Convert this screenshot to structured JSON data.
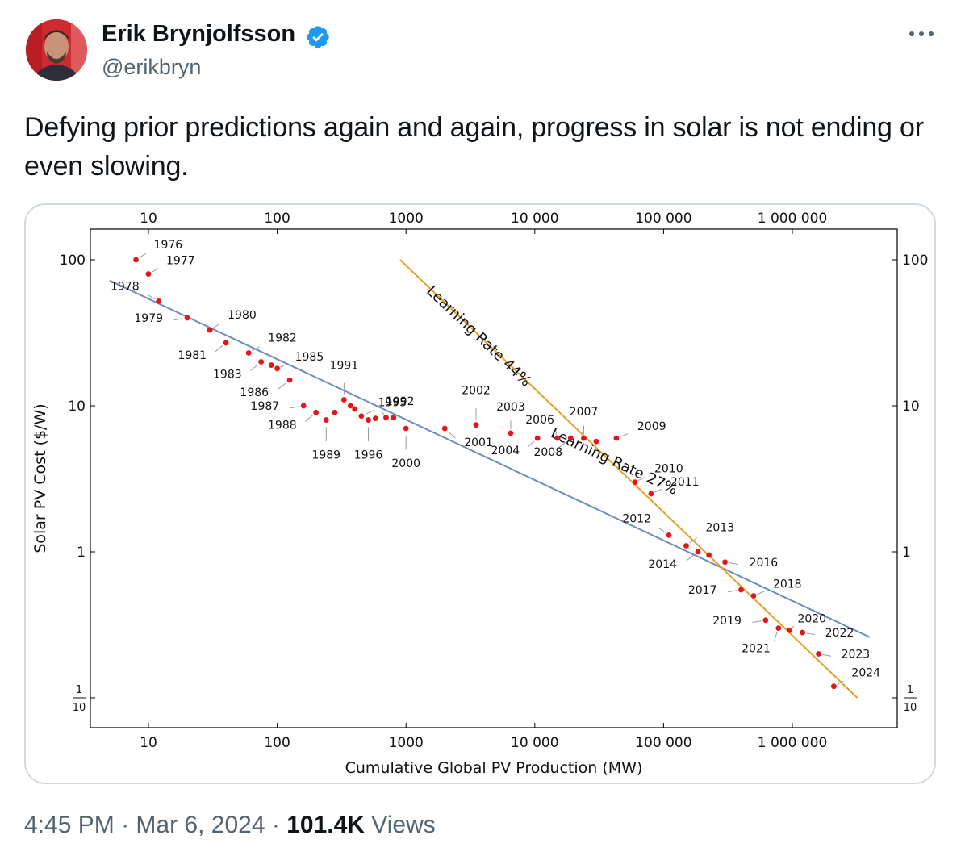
{
  "author": {
    "name": "Erik Brynjolfsson",
    "handle": "@erikbryn",
    "verified": true
  },
  "tweet": {
    "text": "Defying prior predictions again and again, progress in solar is not ending or even slowing."
  },
  "footer": {
    "time": "4:45 PM",
    "sep1": "·",
    "date": "Mar 6, 2024",
    "sep2": "·",
    "views_count": "101.4K",
    "views_label": "Views"
  },
  "icons": {
    "verified": "verified-badge-icon",
    "more": "more-dots-icon"
  },
  "colors": {
    "verified_blue": "#1d9bf0",
    "point": "#e8141b",
    "line27": "#6f8bbf",
    "line44": "#e0a12c"
  },
  "chart_data": {
    "type": "scatter",
    "x_scale": "log",
    "y_scale": "log",
    "xlabel": "Cumulative Global PV Production (MW)",
    "ylabel": "Solar PV Cost ($/W)",
    "x_ticks": [
      {
        "v": 10,
        "label": "10"
      },
      {
        "v": 100,
        "label": "100"
      },
      {
        "v": 1000,
        "label": "1000"
      },
      {
        "v": 10000,
        "label": "10 000"
      },
      {
        "v": 100000,
        "label": "100 000"
      },
      {
        "v": 1000000,
        "label": "1 000 000"
      }
    ],
    "y_ticks": [
      {
        "v": 100,
        "label": "100"
      },
      {
        "v": 10,
        "label": "10"
      },
      {
        "v": 1,
        "label": "1"
      }
    ],
    "y_tick_fraction": {
      "v": 0.1,
      "num": "1",
      "den": "10"
    },
    "xlim": [
      3,
      40000000
    ],
    "ylim": [
      0.07,
      160
    ],
    "points": [
      {
        "year": "1976",
        "x": 8,
        "y": 100
      },
      {
        "year": "1977",
        "x": 10,
        "y": 80
      },
      {
        "year": "1978",
        "x": 12,
        "y": 52
      },
      {
        "year": "1979",
        "x": 20,
        "y": 40
      },
      {
        "year": "1980",
        "x": 30,
        "y": 33
      },
      {
        "year": "1981",
        "x": 40,
        "y": 27
      },
      {
        "year": "1982",
        "x": 60,
        "y": 23
      },
      {
        "year": "1983",
        "x": 75,
        "y": 20
      },
      {
        "year": "",
        "x": 90,
        "y": 19
      },
      {
        "year": "1985",
        "x": 100,
        "y": 18
      },
      {
        "year": "1986",
        "x": 125,
        "y": 15
      },
      {
        "year": "1987",
        "x": 160,
        "y": 10
      },
      {
        "year": "1988",
        "x": 200,
        "y": 9
      },
      {
        "year": "1989",
        "x": 240,
        "y": 8
      },
      {
        "year": "",
        "x": 280,
        "y": 9
      },
      {
        "year": "1991",
        "x": 330,
        "y": 11
      },
      {
        "year": "",
        "x": 370,
        "y": 10
      },
      {
        "year": "",
        "x": 400,
        "y": 9.5
      },
      {
        "year": "1992",
        "x": 450,
        "y": 8.5
      },
      {
        "year": "1996",
        "x": 510,
        "y": 8
      },
      {
        "year": "",
        "x": 580,
        "y": 8.2
      },
      {
        "year": "1995",
        "x": 700,
        "y": 8.3
      },
      {
        "year": "",
        "x": 800,
        "y": 8.3
      },
      {
        "year": "2000",
        "x": 1000,
        "y": 7
      },
      {
        "year": "2001",
        "x": 2000,
        "y": 7
      },
      {
        "year": "2002",
        "x": 3500,
        "y": 7.4
      },
      {
        "year": "2003",
        "x": 6500,
        "y": 6.5
      },
      {
        "year": "2004",
        "x": 10500,
        "y": 6
      },
      {
        "year": "2006",
        "x": 15000,
        "y": 6
      },
      {
        "year": "2008",
        "x": 19000,
        "y": 6
      },
      {
        "year": "2007",
        "x": 24000,
        "y": 6
      },
      {
        "year": "",
        "x": 30000,
        "y": 5.7
      },
      {
        "year": "2009",
        "x": 43000,
        "y": 6
      },
      {
        "year": "2010",
        "x": 60000,
        "y": 3
      },
      {
        "year": "2011",
        "x": 80000,
        "y": 2.5
      },
      {
        "year": "2012",
        "x": 110000,
        "y": 1.3
      },
      {
        "year": "2013",
        "x": 150000,
        "y": 1.1
      },
      {
        "year": "2014",
        "x": 185000,
        "y": 1
      },
      {
        "year": "",
        "x": 225000,
        "y": 0.95
      },
      {
        "year": "2016",
        "x": 300000,
        "y": 0.85
      },
      {
        "year": "2017",
        "x": 400000,
        "y": 0.55
      },
      {
        "year": "2018",
        "x": 500000,
        "y": 0.5
      },
      {
        "year": "2019",
        "x": 620000,
        "y": 0.34
      },
      {
        "year": "2021",
        "x": 780000,
        "y": 0.3
      },
      {
        "year": "2020",
        "x": 950000,
        "y": 0.29
      },
      {
        "year": "2022",
        "x": 1200000,
        "y": 0.28
      },
      {
        "year": "2023",
        "x": 1600000,
        "y": 0.2
      },
      {
        "year": "2024",
        "x": 2100000,
        "y": 0.12
      }
    ],
    "trend_lines": [
      {
        "label": "Learning Rate 27%",
        "from": [
          5,
          72
        ],
        "to": [
          4000000,
          0.26
        ]
      },
      {
        "label": "Learning Rate 44%",
        "from": [
          900,
          100
        ],
        "to": [
          3200000,
          0.1
        ]
      }
    ],
    "grid": false
  }
}
